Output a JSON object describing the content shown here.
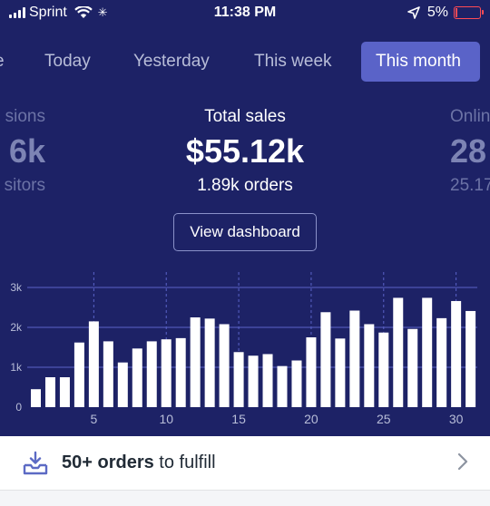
{
  "status_bar": {
    "carrier": "Sprint",
    "time": "11:38 PM",
    "battery": "5%",
    "icons": [
      "signal-icon",
      "wifi-icon",
      "activity-spinner-icon",
      "location-arrow-icon",
      "battery-icon"
    ],
    "battery_color": "#ff4b55"
  },
  "tabs": [
    {
      "label": "e"
    },
    {
      "label": "Today"
    },
    {
      "label": "Yesterday"
    },
    {
      "label": "This week"
    },
    {
      "label": "This month",
      "active": true
    }
  ],
  "metrics": {
    "left": {
      "label": "sions",
      "value": "6k",
      "sub": "sitors"
    },
    "center": {
      "label": "Total sales",
      "value": "$55.12k",
      "sub": "1.89k orders"
    },
    "right": {
      "label": "Onlin",
      "value": "28",
      "sub": "25.17"
    }
  },
  "view_dashboard_label": "View dashboard",
  "chart_data": {
    "type": "bar",
    "y_ticks": [
      "0",
      "1k",
      "2k",
      "3k"
    ],
    "x_ticks": [
      "5",
      "10",
      "15",
      "20",
      "25",
      "30"
    ],
    "ylim": [
      0,
      3000
    ],
    "x": [
      1,
      2,
      3,
      4,
      5,
      6,
      7,
      8,
      9,
      10,
      11,
      12,
      13,
      14,
      15,
      16,
      17,
      18,
      19,
      20,
      21,
      22,
      23,
      24,
      25,
      26,
      27,
      28,
      29,
      30,
      31
    ],
    "values": [
      450,
      750,
      750,
      1620,
      2150,
      1650,
      1120,
      1470,
      1650,
      1700,
      1730,
      2250,
      2220,
      2080,
      1380,
      1290,
      1330,
      1030,
      1170,
      1750,
      2380,
      1720,
      2420,
      2080,
      1870,
      2740,
      1960,
      2740,
      2230,
      2660,
      2410
    ],
    "bar_color": "#ffffff",
    "grid_color": "#5a63c8"
  },
  "fulfill": {
    "count": "50+ orders",
    "rest": " to fulfill",
    "icon": "inbox-download-icon"
  },
  "colors": {
    "background": "#1d2266",
    "active_tab": "#5a63c8",
    "accent_icon": "#5c6ac4"
  }
}
